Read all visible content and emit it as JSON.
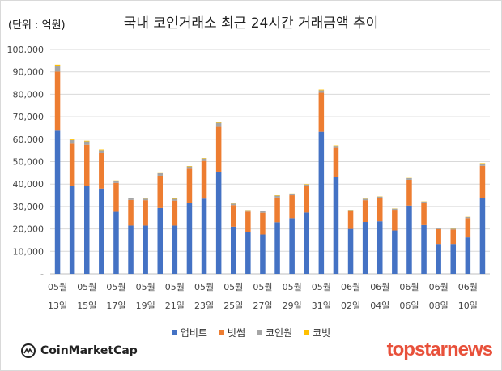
{
  "header": {
    "unit_label": "(단위 : 억원)",
    "title": "국내 코인거래소 최근 24시간 거래금액 추이"
  },
  "chart_data": {
    "type": "bar",
    "stacked": true,
    "title": "국내 코인거래소 최근 24시간 거래금액 추이",
    "unit": "(단위 : 억원)",
    "xlabel": "",
    "ylabel": "",
    "ylim": [
      0,
      100000
    ],
    "yticks": [
      "-",
      "10,000",
      "20,000",
      "30,000",
      "40,000",
      "50,000",
      "60,000",
      "70,000",
      "80,000",
      "90,000",
      "100,000"
    ],
    "tick_labels": [
      {
        "month": "05월",
        "day": "13일"
      },
      {
        "month": "05월",
        "day": "15일"
      },
      {
        "month": "05월",
        "day": "17일"
      },
      {
        "month": "05월",
        "day": "19일"
      },
      {
        "month": "05월",
        "day": "21일"
      },
      {
        "month": "05월",
        "day": "23일"
      },
      {
        "month": "05월",
        "day": "25일"
      },
      {
        "month": "05월",
        "day": "27일"
      },
      {
        "month": "05월",
        "day": "29일"
      },
      {
        "month": "05월",
        "day": "31일"
      },
      {
        "month": "06월",
        "day": "02일"
      },
      {
        "month": "06월",
        "day": "04일"
      },
      {
        "month": "06월",
        "day": "06일"
      },
      {
        "month": "06월",
        "day": "08일"
      },
      {
        "month": "06월",
        "day": "10일"
      }
    ],
    "categories": [
      "05-13",
      "05-14",
      "05-15",
      "05-16",
      "05-17",
      "05-18",
      "05-19",
      "05-20",
      "05-21",
      "05-22",
      "05-23",
      "05-24",
      "05-25",
      "05-26",
      "05-27",
      "05-28",
      "05-29",
      "05-30",
      "05-31",
      "06-01",
      "06-02",
      "06-03",
      "06-04",
      "06-05",
      "06-06",
      "06-07",
      "06-08",
      "06-09",
      "06-10",
      "06-11"
    ],
    "series": [
      {
        "name": "업비트",
        "color": "#4472c4",
        "values": [
          63800,
          39200,
          39000,
          38000,
          27600,
          21500,
          21500,
          29300,
          21500,
          31500,
          33500,
          45500,
          21000,
          18500,
          17500,
          23000,
          24800,
          27300,
          63300,
          43300,
          20000,
          23100,
          23400,
          19300,
          30400,
          21700,
          13300,
          13300,
          16200,
          33700
        ]
      },
      {
        "name": "빗썸",
        "color": "#ed7d31",
        "values": [
          26300,
          18800,
          18500,
          15800,
          12900,
          11400,
          11300,
          14400,
          11100,
          15300,
          16800,
          20000,
          9600,
          9200,
          9700,
          11000,
          10200,
          11700,
          17400,
          12800,
          7900,
          9700,
          10400,
          9200,
          11500,
          9900,
          6600,
          6400,
          8600,
          14400
        ]
      },
      {
        "name": "코인원",
        "color": "#a5a5a5",
        "values": [
          2400,
          1600,
          1500,
          1300,
          900,
          700,
          700,
          1200,
          800,
          1000,
          1100,
          1800,
          700,
          600,
          600,
          800,
          700,
          800,
          1100,
          900,
          500,
          600,
          600,
          500,
          700,
          600,
          400,
          400,
          500,
          1000
        ]
      },
      {
        "name": "코빗",
        "color": "#ffc000",
        "values": [
          700,
          300,
          300,
          300,
          200,
          100,
          100,
          300,
          200,
          200,
          200,
          400,
          100,
          100,
          100,
          200,
          100,
          200,
          300,
          200,
          100,
          100,
          100,
          100,
          100,
          100,
          100,
          100,
          100,
          200
        ]
      }
    ],
    "grid": true,
    "legend_position": "bottom"
  },
  "branding": {
    "left_logo": "CoinMarketCap",
    "right_logo": "topstarnews",
    "icon": "coinmarketcap-icon"
  }
}
